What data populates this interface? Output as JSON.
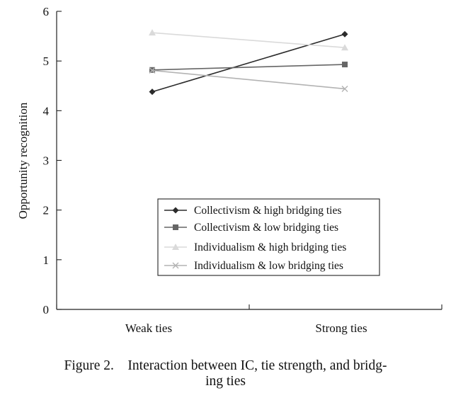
{
  "chart_data": {
    "type": "line",
    "categories": [
      "Weak ties",
      "Strong ties"
    ],
    "ylabel": "Opportunity recognition",
    "xlabel": "",
    "ylim": [
      0,
      6
    ],
    "yticks": [
      "0",
      "1",
      "2",
      "3",
      "4",
      "5",
      "6"
    ],
    "grid": false,
    "legend_position": "center-bottom",
    "series": [
      {
        "name": "Collectivism & high bridging ties",
        "values": [
          4.38,
          5.54
        ],
        "color": "#2b2b2b",
        "marker": "diamond"
      },
      {
        "name": "Collectivism & low bridging ties",
        "values": [
          4.82,
          4.93
        ],
        "color": "#666666",
        "marker": "square"
      },
      {
        "name": "Individualism & high bridging ties",
        "values": [
          5.57,
          5.27
        ],
        "color": "#dadada",
        "marker": "triangle"
      },
      {
        "name": "Individualism & low bridging ties",
        "values": [
          4.81,
          4.44
        ],
        "color": "#b3b3b3",
        "marker": "cross"
      }
    ]
  },
  "caption": {
    "line1": "Figure 2.    Interaction between IC, tie strength, and bridg-",
    "line2": "ing ties"
  }
}
